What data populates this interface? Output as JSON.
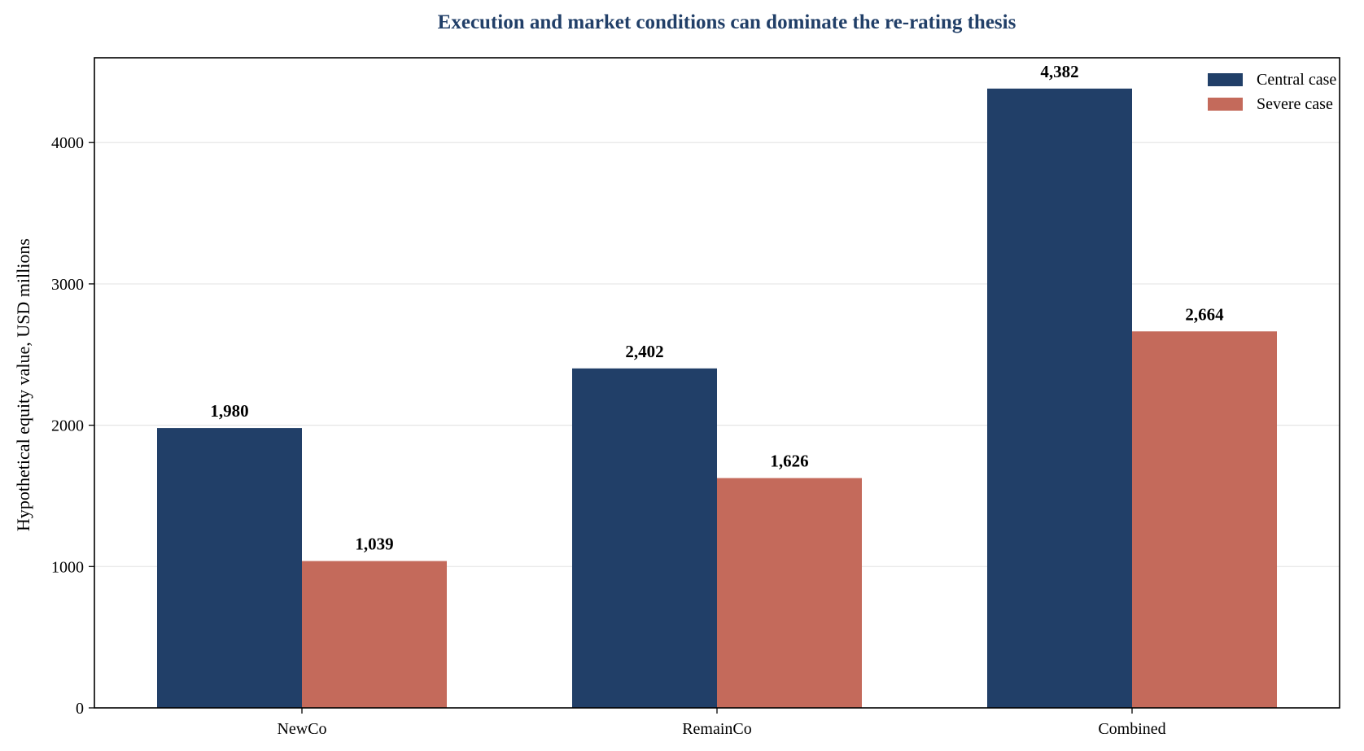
{
  "chart_data": {
    "type": "bar",
    "title": "Execution and market conditions can dominate the re-rating thesis",
    "xlabel": "",
    "ylabel": "Hypothetical equity value, USD millions",
    "categories": [
      "NewCo",
      "RemainCo",
      "Combined"
    ],
    "series": [
      {
        "name": "Central case",
        "values": [
          1980,
          2402,
          4382
        ],
        "labels": [
          "1,980",
          "2,402",
          "4,382"
        ],
        "color": "#213f68"
      },
      {
        "name": "Severe case",
        "values": [
          1039,
          1626,
          2664
        ],
        "labels": [
          "1,039",
          "1,626",
          "2,664"
        ],
        "color": "#c46a5b"
      }
    ],
    "ylim": [
      0,
      4600
    ],
    "yticks": [
      0,
      1000,
      2000,
      3000,
      4000
    ],
    "ytick_labels": [
      "0",
      "1000",
      "2000",
      "3000",
      "4000"
    ],
    "grid": "horizontal",
    "legend_position": "top-right",
    "title_color": "#213f68"
  }
}
